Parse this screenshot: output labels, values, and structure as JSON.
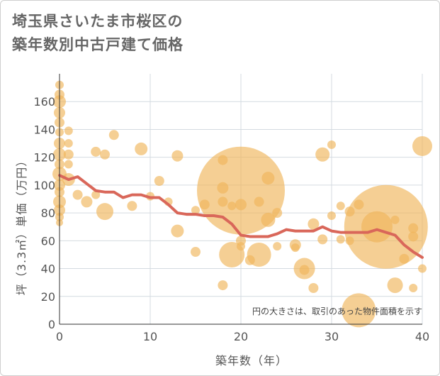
{
  "title": {
    "line1": "埼玉県さいたま市桜区の",
    "line2": "築年数別中古戸建て価格"
  },
  "chart_data": {
    "type": "scatter",
    "title": "埼玉県さいたま市桜区の築年数別中古戸建て価格",
    "xlabel": "築年数（年）",
    "ylabel": "坪（3.3㎡）単価（万円）",
    "xlim": [
      0,
      40
    ],
    "ylim": [
      0,
      180
    ],
    "xticks": [
      0,
      10,
      20,
      30,
      40
    ],
    "yticks": [
      0,
      20,
      40,
      60,
      80,
      100,
      120,
      140,
      160
    ],
    "grid": true,
    "note": "円の大きさは、取引のあった物件面積を示す",
    "colors": {
      "bubble": "#f0b55a",
      "line": "#d9675a",
      "grid": "#d4dbe0"
    },
    "bubbles": [
      {
        "x": 0,
        "y": 172,
        "s": 6
      },
      {
        "x": 0,
        "y": 165,
        "s": 7
      },
      {
        "x": 0,
        "y": 160,
        "s": 9
      },
      {
        "x": 0,
        "y": 152,
        "s": 8
      },
      {
        "x": 0,
        "y": 145,
        "s": 7
      },
      {
        "x": 0,
        "y": 138,
        "s": 6
      },
      {
        "x": 0,
        "y": 130,
        "s": 8
      },
      {
        "x": 0,
        "y": 122,
        "s": 9
      },
      {
        "x": 0,
        "y": 115,
        "s": 7
      },
      {
        "x": 0,
        "y": 108,
        "s": 10
      },
      {
        "x": 0,
        "y": 100,
        "s": 8
      },
      {
        "x": 0,
        "y": 95,
        "s": 7
      },
      {
        "x": 0,
        "y": 88,
        "s": 9
      },
      {
        "x": 0,
        "y": 82,
        "s": 8
      },
      {
        "x": 0,
        "y": 77,
        "s": 6
      },
      {
        "x": 0,
        "y": 73,
        "s": 5
      },
      {
        "x": 1,
        "y": 139,
        "s": 6
      },
      {
        "x": 1,
        "y": 130,
        "s": 6
      },
      {
        "x": 1,
        "y": 122,
        "s": 7
      },
      {
        "x": 1,
        "y": 115,
        "s": 6
      },
      {
        "x": 1,
        "y": 104,
        "s": 9
      },
      {
        "x": 2,
        "y": 93,
        "s": 7
      },
      {
        "x": 3,
        "y": 88,
        "s": 8
      },
      {
        "x": 4,
        "y": 124,
        "s": 7
      },
      {
        "x": 4,
        "y": 93,
        "s": 6
      },
      {
        "x": 5,
        "y": 122,
        "s": 7
      },
      {
        "x": 5,
        "y": 81,
        "s": 12
      },
      {
        "x": 6,
        "y": 136,
        "s": 7
      },
      {
        "x": 8,
        "y": 85,
        "s": 7
      },
      {
        "x": 9,
        "y": 126,
        "s": 9
      },
      {
        "x": 10,
        "y": 92,
        "s": 6
      },
      {
        "x": 11,
        "y": 103,
        "s": 7
      },
      {
        "x": 12,
        "y": 88,
        "s": 6
      },
      {
        "x": 13,
        "y": 121,
        "s": 8
      },
      {
        "x": 13,
        "y": 67,
        "s": 9
      },
      {
        "x": 15,
        "y": 82,
        "s": 6
      },
      {
        "x": 15,
        "y": 52,
        "s": 7
      },
      {
        "x": 16,
        "y": 86,
        "s": 7
      },
      {
        "x": 18,
        "y": 118,
        "s": 7
      },
      {
        "x": 18,
        "y": 98,
        "s": 8
      },
      {
        "x": 18,
        "y": 88,
        "s": 7
      },
      {
        "x": 18,
        "y": 28,
        "s": 7
      },
      {
        "x": 19,
        "y": 50,
        "s": 18
      },
      {
        "x": 19,
        "y": 85,
        "s": 6
      },
      {
        "x": 20,
        "y": 96,
        "s": 62
      },
      {
        "x": 20,
        "y": 86,
        "s": 8
      },
      {
        "x": 20,
        "y": 60,
        "s": 7
      },
      {
        "x": 20,
        "y": 56,
        "s": 6
      },
      {
        "x": 21,
        "y": 46,
        "s": 7
      },
      {
        "x": 22,
        "y": 50,
        "s": 17
      },
      {
        "x": 22,
        "y": 88,
        "s": 7
      },
      {
        "x": 23,
        "y": 105,
        "s": 9
      },
      {
        "x": 23,
        "y": 75,
        "s": 10
      },
      {
        "x": 24,
        "y": 80,
        "s": 7
      },
      {
        "x": 24,
        "y": 56,
        "s": 6
      },
      {
        "x": 26,
        "y": 57,
        "s": 8
      },
      {
        "x": 26,
        "y": 55,
        "s": 6
      },
      {
        "x": 27,
        "y": 40,
        "s": 15
      },
      {
        "x": 27,
        "y": 39,
        "s": 7
      },
      {
        "x": 28,
        "y": 26,
        "s": 7
      },
      {
        "x": 28,
        "y": 72,
        "s": 8
      },
      {
        "x": 29,
        "y": 122,
        "s": 10
      },
      {
        "x": 29,
        "y": 61,
        "s": 7
      },
      {
        "x": 30,
        "y": 129,
        "s": 6
      },
      {
        "x": 30,
        "y": 78,
        "s": 6
      },
      {
        "x": 31,
        "y": 85,
        "s": 6
      },
      {
        "x": 31,
        "y": 61,
        "s": 6
      },
      {
        "x": 32,
        "y": 81,
        "s": 7
      },
      {
        "x": 32,
        "y": 60,
        "s": 6
      },
      {
        "x": 33,
        "y": 86,
        "s": 7
      },
      {
        "x": 33,
        "y": 10,
        "s": 24
      },
      {
        "x": 35,
        "y": 70,
        "s": 22
      },
      {
        "x": 36,
        "y": 70,
        "s": 59
      },
      {
        "x": 37,
        "y": 75,
        "s": 6
      },
      {
        "x": 37,
        "y": 28,
        "s": 11
      },
      {
        "x": 38,
        "y": 47,
        "s": 7
      },
      {
        "x": 39,
        "y": 69,
        "s": 7
      },
      {
        "x": 39,
        "y": 63,
        "s": 7
      },
      {
        "x": 39,
        "y": 26,
        "s": 6
      },
      {
        "x": 40,
        "y": 128,
        "s": 14
      },
      {
        "x": 40,
        "y": 40,
        "s": 6
      }
    ],
    "trend": {
      "x": [
        0,
        1,
        2,
        3,
        4,
        5,
        6,
        7,
        8,
        9,
        10,
        11,
        12,
        13,
        14,
        15,
        16,
        17,
        18,
        19,
        20,
        21,
        22,
        23,
        24,
        25,
        26,
        27,
        28,
        29,
        30,
        31,
        32,
        33,
        34,
        35,
        36,
        37,
        38,
        39,
        40
      ],
      "y": [
        107,
        104,
        106,
        101,
        96,
        95,
        95,
        91,
        93,
        93,
        91,
        91,
        86,
        80,
        79,
        79,
        78,
        78,
        77,
        72,
        64,
        63,
        63,
        63,
        65,
        68,
        67,
        67,
        67,
        70,
        67,
        66,
        66,
        66,
        66,
        68,
        66,
        64,
        57,
        52,
        48
      ]
    }
  }
}
